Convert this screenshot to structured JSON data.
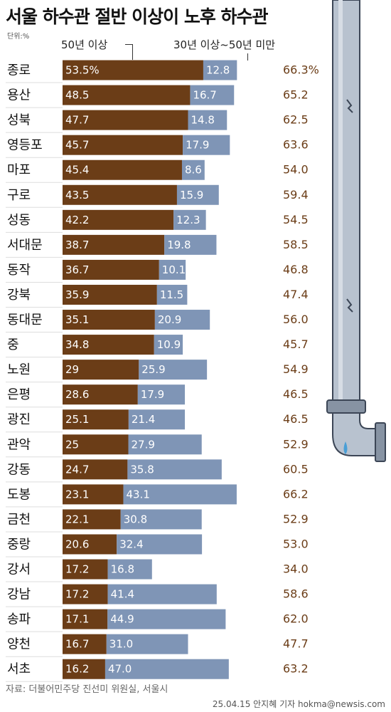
{
  "title": "서울 하수관 절반 이상이 노후 하수관",
  "unit": "단위:%",
  "legend": {
    "over50": "50년 이상",
    "range30to50": "30년 이상~50년 미만"
  },
  "colors": {
    "over50": "#6b3d17",
    "range30to50": "#7f95b6",
    "total_text": "#6b3d17",
    "pipe": "#b8c2cf"
  },
  "chart_data": {
    "type": "bar",
    "stacked": true,
    "orientation": "horizontal",
    "categories": [
      "종로",
      "용산",
      "성북",
      "영등포",
      "마포",
      "구로",
      "성동",
      "서대문",
      "동작",
      "강북",
      "동대문",
      "중",
      "노원",
      "은평",
      "광진",
      "관악",
      "강동",
      "도봉",
      "금천",
      "중랑",
      "강서",
      "강남",
      "송파",
      "양천",
      "서초"
    ],
    "series": [
      {
        "name": "50년 이상",
        "labels": [
          "53.5%",
          "48.5",
          "47.7",
          "45.7",
          "45.4",
          "43.5",
          "42.2",
          "38.7",
          "36.7",
          "35.9",
          "35.1",
          "34.8",
          "29",
          "28.6",
          "25.1",
          "25",
          "24.7",
          "23.1",
          "22.1",
          "20.6",
          "17.2",
          "17.2",
          "17.1",
          "16.7",
          "16.2"
        ],
        "values": [
          53.5,
          48.5,
          47.7,
          45.7,
          45.4,
          43.5,
          42.2,
          38.7,
          36.7,
          35.9,
          35.1,
          34.8,
          29,
          28.6,
          25.1,
          25,
          24.7,
          23.1,
          22.1,
          20.6,
          17.2,
          17.2,
          17.1,
          16.7,
          16.2
        ]
      },
      {
        "name": "30년 이상~50년 미만",
        "labels": [
          "12.8",
          "16.7",
          "14.8",
          "17.9",
          "8.6",
          "15.9",
          "12.3",
          "19.8",
          "10.1",
          "11.5",
          "20.9",
          "10.9",
          "25.9",
          "17.9",
          "21.4",
          "27.9",
          "35.8",
          "43.1",
          "30.8",
          "32.4",
          "16.8",
          "41.4",
          "44.9",
          "31.0",
          "47.0"
        ],
        "values": [
          12.8,
          16.7,
          14.8,
          17.9,
          8.6,
          15.9,
          12.3,
          19.8,
          10.1,
          11.5,
          20.9,
          10.9,
          25.9,
          17.9,
          21.4,
          27.9,
          35.8,
          43.1,
          30.8,
          32.4,
          16.8,
          41.4,
          44.9,
          31.0,
          47.0
        ]
      }
    ],
    "totals": [
      "66.3%",
      "65.2",
      "62.5",
      "63.6",
      "54.0",
      "59.4",
      "54.5",
      "58.5",
      "46.8",
      "47.4",
      "56.0",
      "45.7",
      "54.9",
      "46.5",
      "46.5",
      "52.9",
      "60.5",
      "66.2",
      "52.9",
      "53.0",
      "34.0",
      "58.6",
      "62.0",
      "47.7",
      "63.2"
    ]
  },
  "source": "자료: 더불어민주당 진선미 위원실, 서울시",
  "credit": "25.04.15 안지혜 기자 hokma@newsis.com"
}
